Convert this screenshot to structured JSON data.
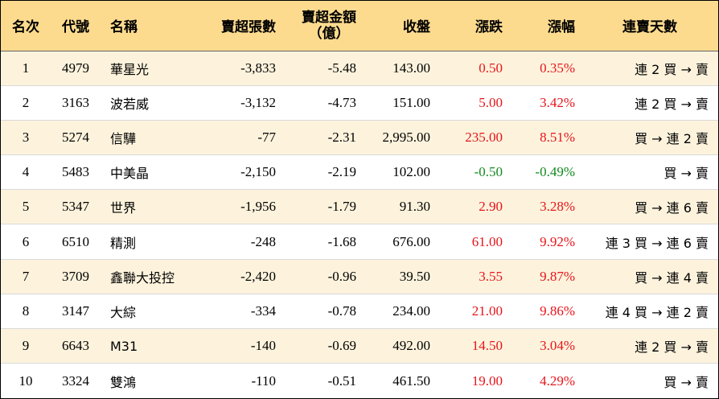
{
  "headers": {
    "rank": "名次",
    "code": "代號",
    "name": "名稱",
    "shares": "賣超張數",
    "amount_line1": "賣超金額",
    "amount_line2": "（億）",
    "close": "收盤",
    "change": "漲跌",
    "pct": "漲幅",
    "streak": "連賣天數"
  },
  "colors": {
    "header_bg": "#fcdb8f",
    "row_alt_bg": "#fdf3dd",
    "up": "#e8141a",
    "down": "#12891f"
  },
  "rows": [
    {
      "rank": "1",
      "code": "4979",
      "name": "華星光",
      "shares": "-3,833",
      "amount": "-5.48",
      "close": "143.00",
      "change": "0.50",
      "pct": "0.35%",
      "dir": "up",
      "streak": "連 2 買 → 賣"
    },
    {
      "rank": "2",
      "code": "3163",
      "name": "波若威",
      "shares": "-3,132",
      "amount": "-4.73",
      "close": "151.00",
      "change": "5.00",
      "pct": "3.42%",
      "dir": "up",
      "streak": "連 2 買 → 賣"
    },
    {
      "rank": "3",
      "code": "5274",
      "name": "信驊",
      "shares": "-77",
      "amount": "-2.31",
      "close": "2,995.00",
      "change": "235.00",
      "pct": "8.51%",
      "dir": "up",
      "streak": "買 → 連 2 賣"
    },
    {
      "rank": "4",
      "code": "5483",
      "name": "中美晶",
      "shares": "-2,150",
      "amount": "-2.19",
      "close": "102.00",
      "change": "-0.50",
      "pct": "-0.49%",
      "dir": "down",
      "streak": "買 → 賣"
    },
    {
      "rank": "5",
      "code": "5347",
      "name": "世界",
      "shares": "-1,956",
      "amount": "-1.79",
      "close": "91.30",
      "change": "2.90",
      "pct": "3.28%",
      "dir": "up",
      "streak": "買 → 連 6 賣"
    },
    {
      "rank": "6",
      "code": "6510",
      "name": "精測",
      "shares": "-248",
      "amount": "-1.68",
      "close": "676.00",
      "change": "61.00",
      "pct": "9.92%",
      "dir": "up",
      "streak": "連 3 買 → 連 6 賣"
    },
    {
      "rank": "7",
      "code": "3709",
      "name": "鑫聯大投控",
      "shares": "-2,420",
      "amount": "-0.96",
      "close": "39.50",
      "change": "3.55",
      "pct": "9.87%",
      "dir": "up",
      "streak": "買 → 連 4 賣"
    },
    {
      "rank": "8",
      "code": "3147",
      "name": "大綜",
      "shares": "-334",
      "amount": "-0.78",
      "close": "234.00",
      "change": "21.00",
      "pct": "9.86%",
      "dir": "up",
      "streak": "連 4 買 → 連 2 賣"
    },
    {
      "rank": "9",
      "code": "6643",
      "name": "M31",
      "shares": "-140",
      "amount": "-0.69",
      "close": "492.00",
      "change": "14.50",
      "pct": "3.04%",
      "dir": "up",
      "streak": "連 2 買 → 賣"
    },
    {
      "rank": "10",
      "code": "3324",
      "name": "雙鴻",
      "shares": "-110",
      "amount": "-0.51",
      "close": "461.50",
      "change": "19.00",
      "pct": "4.29%",
      "dir": "up",
      "streak": "買 → 賣"
    }
  ]
}
